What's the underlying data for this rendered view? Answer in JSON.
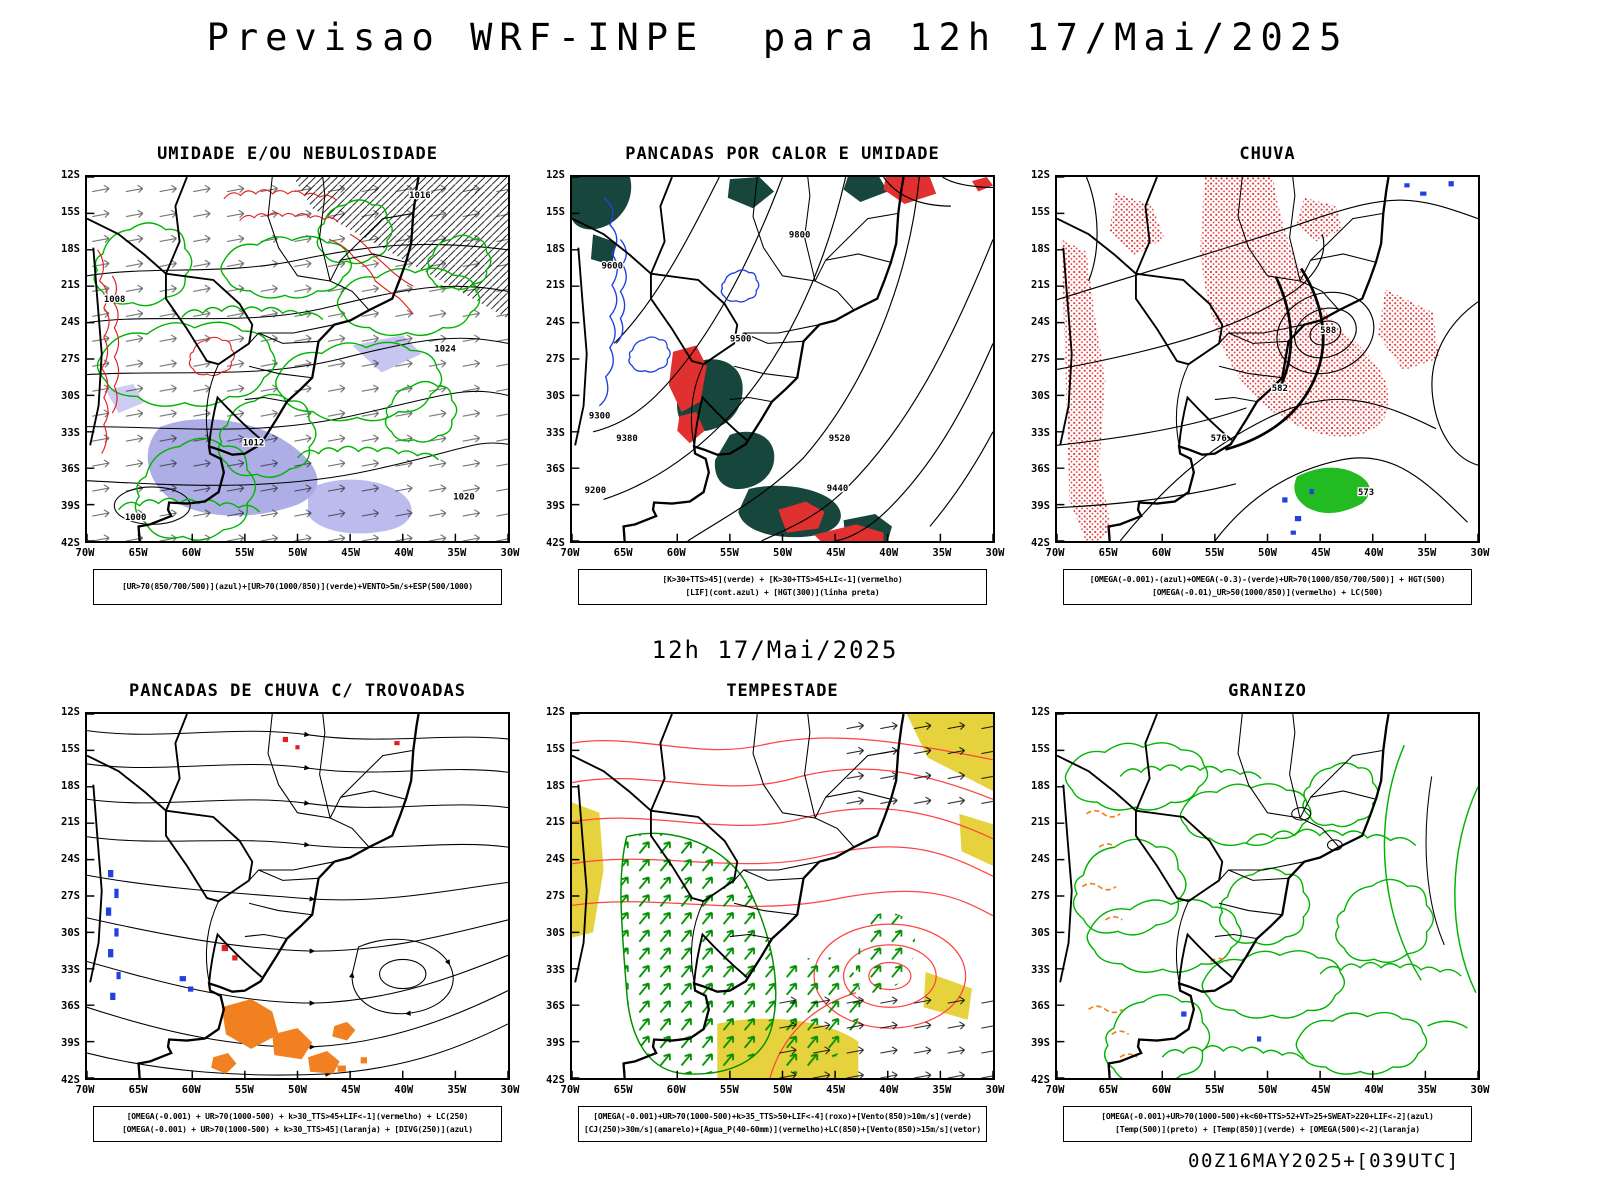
{
  "header": {
    "title": "Previsao WRF-INPE  para 12h 17/Mai/2025"
  },
  "subtitle": "12h 17/Mai/2025",
  "footer": {
    "run_info": "00Z16MAY2025+[039UTC]"
  },
  "axes": {
    "lat": [
      "12S",
      "15S",
      "18S",
      "21S",
      "24S",
      "27S",
      "30S",
      "33S",
      "36S",
      "39S",
      "42S"
    ],
    "lon": [
      "70W",
      "65W",
      "60W",
      "55W",
      "50W",
      "45W",
      "40W",
      "35W",
      "30W"
    ]
  },
  "colors": {
    "contour_green": "#00b400",
    "contour_red": "#e02020",
    "contour_blue": "#2040e0",
    "fill_dark_green": "#17463c",
    "fill_red": "#e03030",
    "fill_orange": "#f08020",
    "fill_yellow": "#e6d23c",
    "fill_violet": "#9a9ae0",
    "line_black": "#000000"
  },
  "panels": [
    {
      "id": "umidade",
      "title": "UMIDADE E/OU NEBULOSIDADE",
      "caption_lines": [
        "[UR>70(850/700/500)](azul)+[UR>70(1000/850)](verde)+VENTO>5m/s+ESP(500/1000)"
      ],
      "contour_labels": [
        "1016",
        "1024",
        "1012",
        "1020",
        "1008",
        "1000"
      ]
    },
    {
      "id": "pancadas-calor-umidade",
      "title": "PANCADAS POR CALOR E UMIDADE",
      "caption_lines": [
        "[K>30+TTS>45](verde) + [K>30+TTS>45+LI<-1](vermelho)",
        "[LIF](cont.azul) + [HGT(300)](linha preta)"
      ],
      "contour_labels": [
        "9800",
        "9600",
        "9500",
        "9520",
        "9440",
        "9380",
        "9300",
        "9200"
      ]
    },
    {
      "id": "chuva",
      "title": "CHUVA",
      "caption_lines": [
        "[OMEGA(-0.001)-(azul)+OMEGA(-0.3)-(verde)+UR>70(1000/850/700/500)] + HGT(500)",
        "[OMEGA(-0.01)_UR>50(1000/850)](vermelho) + LC(500)"
      ],
      "contour_labels": [
        "588",
        "582",
        "576",
        "573"
      ]
    },
    {
      "id": "pancadas-trovoadas",
      "title": "PANCADAS DE CHUVA C/ TROVOADAS",
      "caption_lines": [
        "[OMEGA(-0.001) + UR>70(1000-500) + k>30_TTS>45+LIF<-1](vermelho) + LC(250)",
        "[OMEGA(-0.001) + UR>70(1000-500) + k>30_TTS>45](laranja) + [DIVG(250)](azul)"
      ],
      "contour_labels": []
    },
    {
      "id": "tempestade",
      "title": "TEMPESTADE",
      "caption_lines": [
        "[OMEGA(-0.001)+UR>70(1000-500)+k>35_TTS>50+LIF<-4](roxo)+[Vento(850)>10m/s](verde)",
        "[CJ(250)>30m/s](amarelo)+[Agua_P(40-60mm)](vermelho)+LC(850)+[Vento(850)>15m/s](vetor)"
      ],
      "contour_labels": []
    },
    {
      "id": "granizo",
      "title": "GRANIZO",
      "caption_lines": [
        "[OMEGA(-0.001)+UR>70(1000-500)+k<60+TTS>52+VT>25+SWEAT>220+LIF<-2](azul)",
        "[Temp(500)](preto) + [Temp(850)](verde) + [OMEGA(500)<-2](laranja)"
      ],
      "contour_labels": []
    }
  ]
}
